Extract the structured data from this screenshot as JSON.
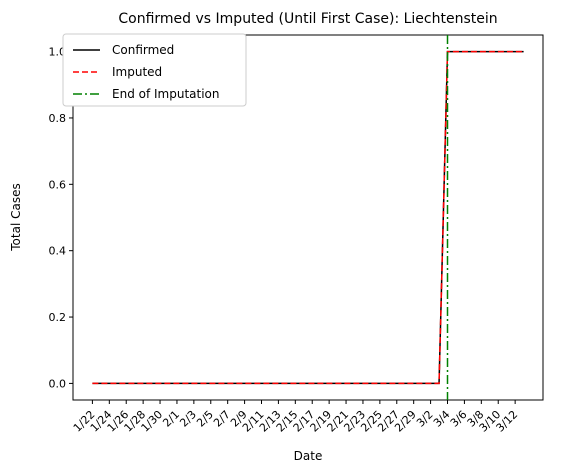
{
  "chart_data": {
    "type": "line",
    "title": "Confirmed vs Imputed (Until First Case): Liechtenstein",
    "xlabel": "Date",
    "ylabel": "Total Cases",
    "ylim": [
      -0.05,
      1.05
    ],
    "yticks": [
      "0.0",
      "0.2",
      "0.4",
      "0.6",
      "0.8",
      "1.0"
    ],
    "ytick_values": [
      0.0,
      0.2,
      0.4,
      0.6,
      0.8,
      1.0
    ],
    "x_tick_labels": [
      "1/22",
      "1/24",
      "1/26",
      "1/28",
      "1/30",
      "2/1",
      "2/3",
      "2/5",
      "2/7",
      "2/9",
      "2/11",
      "2/13",
      "2/15",
      "2/17",
      "2/19",
      "2/21",
      "2/23",
      "2/25",
      "2/27",
      "2/29",
      "3/2",
      "3/4",
      "3/6",
      "3/8",
      "3/10",
      "3/12"
    ],
    "x_dates": [
      "1/22",
      "1/23",
      "1/24",
      "1/25",
      "1/26",
      "1/27",
      "1/28",
      "1/29",
      "1/30",
      "1/31",
      "2/1",
      "2/2",
      "2/3",
      "2/4",
      "2/5",
      "2/6",
      "2/7",
      "2/8",
      "2/9",
      "2/10",
      "2/11",
      "2/12",
      "2/13",
      "2/14",
      "2/15",
      "2/16",
      "2/17",
      "2/18",
      "2/19",
      "2/20",
      "2/21",
      "2/22",
      "2/23",
      "2/24",
      "2/25",
      "2/26",
      "2/27",
      "2/28",
      "2/29",
      "3/1",
      "3/2",
      "3/3",
      "3/4",
      "3/5",
      "3/6",
      "3/7",
      "3/8",
      "3/9",
      "3/10",
      "3/11",
      "3/12",
      "3/13"
    ],
    "series": [
      {
        "name": "Confirmed",
        "color": "#000000",
        "dash": "solid",
        "x": [
          "1/22",
          "3/3",
          "3/4",
          "3/13"
        ],
        "y": [
          0,
          0,
          1,
          1
        ]
      },
      {
        "name": "Imputed",
        "color": "#ff0000",
        "dash": "dashed",
        "x": [
          "1/22",
          "3/3",
          "3/4",
          "3/13"
        ],
        "y": [
          0,
          0,
          1,
          1
        ]
      }
    ],
    "vline": {
      "name": "End of Imputation",
      "color": "#008000",
      "dash": "dashdot",
      "x": "3/4"
    },
    "legend": "top-left",
    "grid": false
  }
}
